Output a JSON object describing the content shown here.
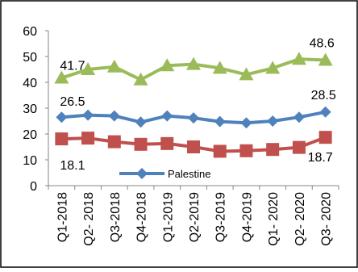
{
  "chart_data": {
    "type": "line",
    "categories": [
      "Q1-2018",
      "Q2- 2018",
      "Q3-2018",
      "Q4-2018",
      "Q1-2019",
      "Q2-2019",
      "Q3-2019",
      "Q4-2019",
      "Q1- 2020",
      "Q2- 2020",
      "Q3- 2020"
    ],
    "ylim": [
      0,
      60
    ],
    "yticks": [
      0,
      10,
      20,
      30,
      40,
      50,
      60
    ],
    "grid": false,
    "series": [
      {
        "name": "",
        "color": "#9BBB59",
        "marker": "triangle",
        "values": [
          41.7,
          45.0,
          46.0,
          41.0,
          46.5,
          47.0,
          45.5,
          43.0,
          45.5,
          49.0,
          48.6
        ]
      },
      {
        "name": "Palestine",
        "color": "#4F81BD",
        "marker": "diamond",
        "values": [
          26.5,
          27.3,
          27.0,
          24.6,
          27.0,
          26.2,
          24.8,
          24.3,
          25.0,
          26.5,
          28.5
        ]
      },
      {
        "name": "",
        "color": "#C0504D",
        "marker": "square",
        "values": [
          18.1,
          18.4,
          17.0,
          16.0,
          16.3,
          15.0,
          13.3,
          13.5,
          14.0,
          14.8,
          18.7
        ]
      }
    ],
    "data_labels": [
      "41.7",
      "48.6",
      "26.5",
      "28.5",
      "18.1",
      "18.7"
    ],
    "legend": {
      "entries": [
        "Palestine"
      ],
      "placement": "bottom-center, inside plot"
    }
  }
}
